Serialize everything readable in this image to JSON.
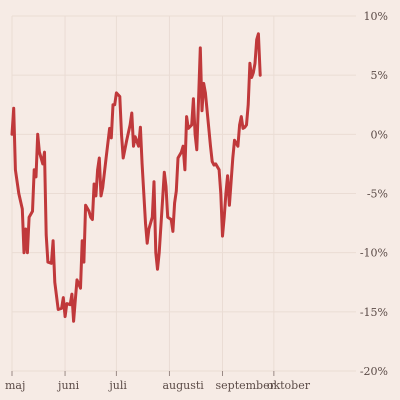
{
  "chart_data": {
    "type": "line",
    "title": "",
    "xlabel": "",
    "ylabel": "",
    "x_range": [
      "2023-05-01",
      "2023-11-18"
    ],
    "x_ticks": [
      {
        "date": "2023-05-01",
        "label": "maj"
      },
      {
        "date": "2023-06-01",
        "label": "juni"
      },
      {
        "date": "2023-07-01",
        "label": "juli"
      },
      {
        "date": "2023-08-01",
        "label": "augusti"
      },
      {
        "date": "2023-09-01",
        "label": "september"
      },
      {
        "date": "2023-10-01",
        "label": "oktober"
      }
    ],
    "ylim": [
      -20,
      10
    ],
    "y_ticks": [
      {
        "value": 10,
        "label": "10%"
      },
      {
        "value": 5,
        "label": "5%"
      },
      {
        "value": 0,
        "label": "0%"
      },
      {
        "value": -5,
        "label": "-5%"
      },
      {
        "value": -10,
        "label": "-10%"
      },
      {
        "value": -15,
        "label": "-15%"
      },
      {
        "value": -20,
        "label": "-20%"
      }
    ],
    "grid": true,
    "series": [
      {
        "color": "#c0393b",
        "points": [
          [
            "2023-05-01",
            0.0
          ],
          [
            "2023-05-02",
            2.2
          ],
          [
            "2023-05-03",
            -3.0
          ],
          [
            "2023-05-05",
            -5.0
          ],
          [
            "2023-05-07",
            -6.3
          ],
          [
            "2023-05-08",
            -10.0
          ],
          [
            "2023-05-09",
            -8.0
          ],
          [
            "2023-05-10",
            -10.0
          ],
          [
            "2023-05-11",
            -7.0
          ],
          [
            "2023-05-13",
            -6.5
          ],
          [
            "2023-05-14",
            -3.0
          ],
          [
            "2023-05-15",
            -3.6
          ],
          [
            "2023-05-16",
            0.0
          ],
          [
            "2023-05-17",
            -1.5
          ],
          [
            "2023-05-19",
            -2.5
          ],
          [
            "2023-05-20",
            -1.5
          ],
          [
            "2023-05-21",
            -8.5
          ],
          [
            "2023-05-22",
            -10.8
          ],
          [
            "2023-05-24",
            -10.9
          ],
          [
            "2023-05-25",
            -9.0
          ],
          [
            "2023-05-26",
            -12.5
          ],
          [
            "2023-05-28",
            -14.8
          ],
          [
            "2023-05-30",
            -14.7
          ],
          [
            "2023-05-31",
            -13.8
          ],
          [
            "2023-06-01",
            -15.4
          ],
          [
            "2023-06-02",
            -14.3
          ],
          [
            "2023-06-04",
            -14.4
          ],
          [
            "2023-06-05",
            -13.5
          ],
          [
            "2023-06-06",
            -15.8
          ],
          [
            "2023-06-07",
            -14.0
          ],
          [
            "2023-06-08",
            -12.3
          ],
          [
            "2023-06-10",
            -13.0
          ],
          [
            "2023-06-11",
            -9.0
          ],
          [
            "2023-06-12",
            -10.8
          ],
          [
            "2023-06-13",
            -6.0
          ],
          [
            "2023-06-15",
            -6.5
          ],
          [
            "2023-06-16",
            -7.0
          ],
          [
            "2023-06-17",
            -7.2
          ],
          [
            "2023-06-18",
            -4.2
          ],
          [
            "2023-06-19",
            -5.2
          ],
          [
            "2023-06-20",
            -3.0
          ],
          [
            "2023-06-21",
            -2.0
          ],
          [
            "2023-06-22",
            -5.2
          ],
          [
            "2023-06-23",
            -4.5
          ],
          [
            "2023-06-25",
            -2.0
          ],
          [
            "2023-06-27",
            0.5
          ],
          [
            "2023-06-28",
            -0.3
          ],
          [
            "2023-06-29",
            2.5
          ],
          [
            "2023-06-30",
            2.5
          ],
          [
            "2023-07-01",
            3.5
          ],
          [
            "2023-07-03",
            3.2
          ],
          [
            "2023-07-04",
            0.0
          ],
          [
            "2023-07-05",
            -2.0
          ],
          [
            "2023-07-07",
            -0.5
          ],
          [
            "2023-07-09",
            0.8
          ],
          [
            "2023-07-10",
            1.8
          ],
          [
            "2023-07-11",
            -1.0
          ],
          [
            "2023-07-12",
            -0.2
          ],
          [
            "2023-07-14",
            -1.0
          ],
          [
            "2023-07-15",
            0.6
          ],
          [
            "2023-07-16",
            -2.5
          ],
          [
            "2023-07-17",
            -5.0
          ],
          [
            "2023-07-18",
            -7.5
          ],
          [
            "2023-07-19",
            -9.2
          ],
          [
            "2023-07-20",
            -8.0
          ],
          [
            "2023-07-22",
            -7.0
          ],
          [
            "2023-07-23",
            -4.0
          ],
          [
            "2023-07-24",
            -10.0
          ],
          [
            "2023-07-25",
            -11.4
          ],
          [
            "2023-07-26",
            -10.0
          ],
          [
            "2023-07-28",
            -5.5
          ],
          [
            "2023-07-29",
            -3.2
          ],
          [
            "2023-07-30",
            -4.4
          ],
          [
            "2023-07-31",
            -7.0
          ],
          [
            "2023-08-02",
            -7.2
          ],
          [
            "2023-08-03",
            -8.2
          ],
          [
            "2023-08-04",
            -5.8
          ],
          [
            "2023-08-05",
            -4.8
          ],
          [
            "2023-08-06",
            -2.0
          ],
          [
            "2023-08-08",
            -1.5
          ],
          [
            "2023-08-09",
            -1.0
          ],
          [
            "2023-08-10",
            -3.0
          ],
          [
            "2023-08-11",
            1.5
          ],
          [
            "2023-08-12",
            0.5
          ],
          [
            "2023-08-14",
            0.8
          ],
          [
            "2023-08-15",
            3.0
          ],
          [
            "2023-08-16",
            0.0
          ],
          [
            "2023-08-17",
            -1.3
          ],
          [
            "2023-08-18",
            2.8
          ],
          [
            "2023-08-19",
            7.3
          ],
          [
            "2023-08-20",
            2.0
          ],
          [
            "2023-08-21",
            4.3
          ],
          [
            "2023-08-22",
            3.5
          ],
          [
            "2023-08-24",
            0.5
          ],
          [
            "2023-08-25",
            -1.0
          ],
          [
            "2023-08-26",
            -2.3
          ],
          [
            "2023-08-27",
            -2.6
          ],
          [
            "2023-08-28",
            -2.5
          ],
          [
            "2023-08-30",
            -3.0
          ],
          [
            "2023-08-31",
            -5.0
          ],
          [
            "2023-09-01",
            -8.6
          ],
          [
            "2023-09-02",
            -7.0
          ],
          [
            "2023-09-03",
            -5.0
          ],
          [
            "2023-09-04",
            -3.5
          ],
          [
            "2023-09-05",
            -6.0
          ],
          [
            "2023-09-06",
            -4.0
          ],
          [
            "2023-09-07",
            -2.0
          ],
          [
            "2023-09-08",
            -0.5
          ],
          [
            "2023-09-10",
            -1.0
          ],
          [
            "2023-09-11",
            0.8
          ],
          [
            "2023-09-12",
            1.5
          ],
          [
            "2023-09-13",
            0.5
          ],
          [
            "2023-09-14",
            0.6
          ],
          [
            "2023-09-15",
            0.8
          ],
          [
            "2023-09-16",
            2.5
          ],
          [
            "2023-09-17",
            6.0
          ],
          [
            "2023-09-18",
            4.8
          ],
          [
            "2023-09-19",
            5.2
          ],
          [
            "2023-09-20",
            6.0
          ],
          [
            "2023-09-21",
            8.0
          ],
          [
            "2023-09-22",
            8.5
          ],
          [
            "2023-09-23",
            5.0
          ]
        ]
      }
    ]
  }
}
